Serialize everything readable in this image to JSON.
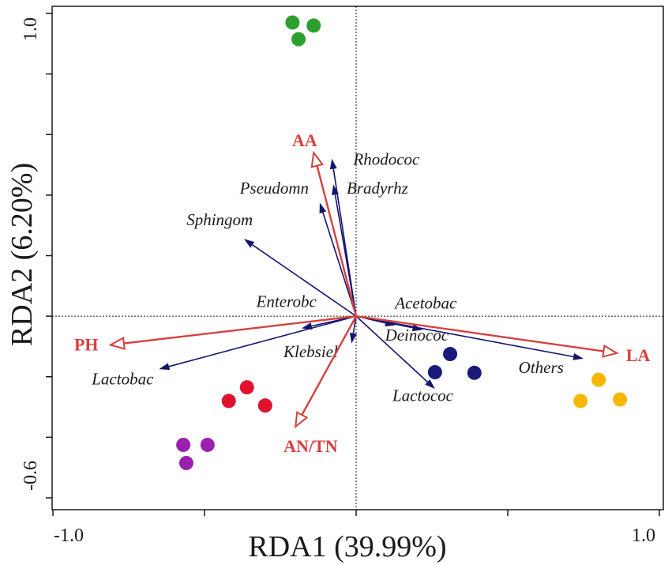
{
  "chart_data": {
    "type": "scatter",
    "subtype": "RDA biplot",
    "xlabel": "RDA1 (39.99%)",
    "ylabel": "RDA2 (6.20%)",
    "xlim": [
      -1.0,
      1.0
    ],
    "ylim": [
      -0.6,
      1.0
    ],
    "x_tick_labels": [
      {
        "value": -1.0,
        "label": "-1.0"
      },
      {
        "value": 1.0,
        "label": "1.0"
      }
    ],
    "y_tick_labels": [
      {
        "value": -0.6,
        "label": "-0.6"
      },
      {
        "value": 1.0,
        "label": "1.0"
      }
    ],
    "x_ticks": [
      -1.0,
      -0.5,
      0.0,
      0.5,
      1.0
    ],
    "y_ticks": [
      -0.6,
      -0.4,
      -0.2,
      0.0,
      0.2,
      0.4,
      0.6,
      0.8,
      1.0
    ],
    "reference_lines": {
      "x": 0,
      "y": 0
    },
    "environmental_arrows": [
      {
        "name": "AA",
        "x": -0.14,
        "y": 0.54,
        "label_x": -0.17,
        "label_y": 0.58
      },
      {
        "name": "PH",
        "x": -0.81,
        "y": -0.095,
        "label_x": -0.89,
        "label_y": -0.095
      },
      {
        "name": "LA",
        "x": 0.86,
        "y": -0.122,
        "label_x": 0.93,
        "label_y": -0.13
      },
      {
        "name": "AN/TN",
        "x": -0.2,
        "y": -0.365,
        "label_x": -0.15,
        "label_y": -0.43
      }
    ],
    "species_arrows": [
      {
        "name": "Rhodococ",
        "x": -0.08,
        "y": 0.52,
        "label_x": 0.1,
        "label_y": 0.5
      },
      {
        "name": "Bradyrhz",
        "x": -0.075,
        "y": 0.435,
        "label_x": 0.07,
        "label_y": 0.405
      },
      {
        "name": "Pseudomn",
        "x": -0.12,
        "y": 0.375,
        "label_x": -0.27,
        "label_y": 0.405
      },
      {
        "name": "Sphingom",
        "x": -0.37,
        "y": 0.255,
        "label_x": -0.45,
        "label_y": 0.3
      },
      {
        "name": "Enterobc",
        "x": -0.18,
        "y": -0.04,
        "label_x": -0.23,
        "label_y": 0.03
      },
      {
        "name": "Acetobac",
        "x": 0.13,
        "y": -0.03,
        "label_x": 0.23,
        "label_y": 0.025
      },
      {
        "name": "Deinococ",
        "x": 0.22,
        "y": -0.045,
        "label_x": 0.2,
        "label_y": -0.08
      },
      {
        "name": "Klebsiel",
        "x": -0.015,
        "y": -0.09,
        "label_x": -0.15,
        "label_y": -0.135
      },
      {
        "name": "Lactobac",
        "x": -0.65,
        "y": -0.175,
        "label_x": -0.77,
        "label_y": -0.225
      },
      {
        "name": "Lactococ",
        "x": 0.26,
        "y": -0.24,
        "label_x": 0.22,
        "label_y": -0.28
      },
      {
        "name": "Others",
        "x": 0.75,
        "y": -0.14,
        "label_x": 0.61,
        "label_y": -0.188
      }
    ],
    "sample_groups": [
      {
        "color": "#2ca02c",
        "points": [
          [
            -0.21,
            0.97
          ],
          [
            -0.14,
            0.96
          ],
          [
            -0.19,
            0.915
          ]
        ]
      },
      {
        "color": "#9b1fb1",
        "points": [
          [
            -0.57,
            -0.425
          ],
          [
            -0.49,
            -0.425
          ],
          [
            -0.56,
            -0.485
          ]
        ]
      },
      {
        "color": "#e0102f",
        "points": [
          [
            -0.36,
            -0.235
          ],
          [
            -0.42,
            -0.28
          ],
          [
            -0.3,
            -0.295
          ]
        ]
      },
      {
        "color": "#1a1a7a",
        "points": [
          [
            0.31,
            -0.125
          ],
          [
            0.26,
            -0.185
          ],
          [
            0.39,
            -0.187
          ]
        ]
      },
      {
        "color": "#f5b700",
        "points": [
          [
            0.8,
            -0.21
          ],
          [
            0.74,
            -0.28
          ],
          [
            0.87,
            -0.275
          ]
        ]
      }
    ],
    "colors": {
      "env_arrow": "#d6403f",
      "species_arrow": "#14146e",
      "axis": "#1a1a1a"
    }
  }
}
